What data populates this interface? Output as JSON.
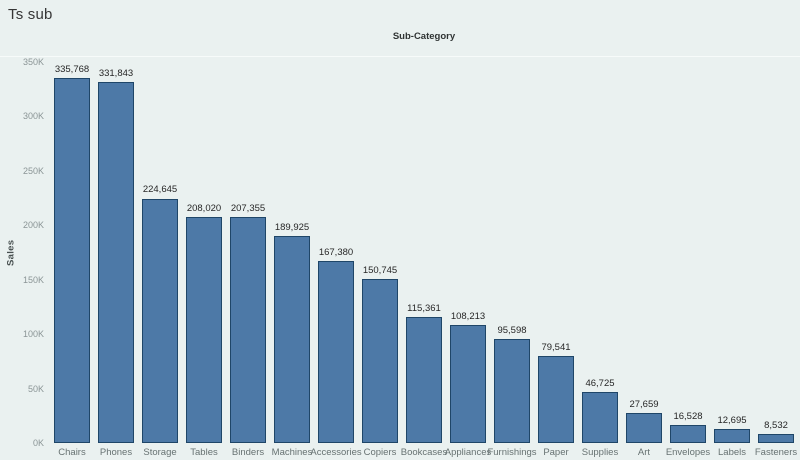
{
  "title": "Ts sub",
  "chart_data": {
    "type": "bar",
    "title": "Sub-Category",
    "xlabel": "Sub-Category",
    "ylabel": "Sales",
    "categories": [
      "Chairs",
      "Phones",
      "Storage",
      "Tables",
      "Binders",
      "Machines",
      "Accessories",
      "Copiers",
      "Bookcases",
      "Appliances",
      "Furnishings",
      "Paper",
      "Supplies",
      "Art",
      "Envelopes",
      "Labels",
      "Fasteners"
    ],
    "values": [
      335768,
      331843,
      224645,
      208020,
      207355,
      189925,
      167380,
      150745,
      115361,
      108213,
      95598,
      79541,
      46725,
      27659,
      16528,
      12695,
      8532
    ],
    "value_labels": [
      "335,768",
      "331,843",
      "224,645",
      "208,020",
      "207,355",
      "189,925",
      "167,380",
      "150,745",
      "115,361",
      "108,213",
      "95,598",
      "79,541",
      "46,725",
      "27,659",
      "16,528",
      "12,695",
      "8,532"
    ],
    "y_ticks": [
      "0K",
      "50K",
      "100K",
      "150K",
      "200K",
      "250K",
      "300K",
      "350K"
    ],
    "ylim": [
      0,
      350000
    ],
    "grid": false,
    "legend": false,
    "colors": {
      "bar_fill": "#4d79a7",
      "bar_border": "#1f4668",
      "background": "#eaf1f0",
      "tick_label": "#8b9596",
      "category_label": "#677272",
      "data_label": "#262626"
    }
  }
}
